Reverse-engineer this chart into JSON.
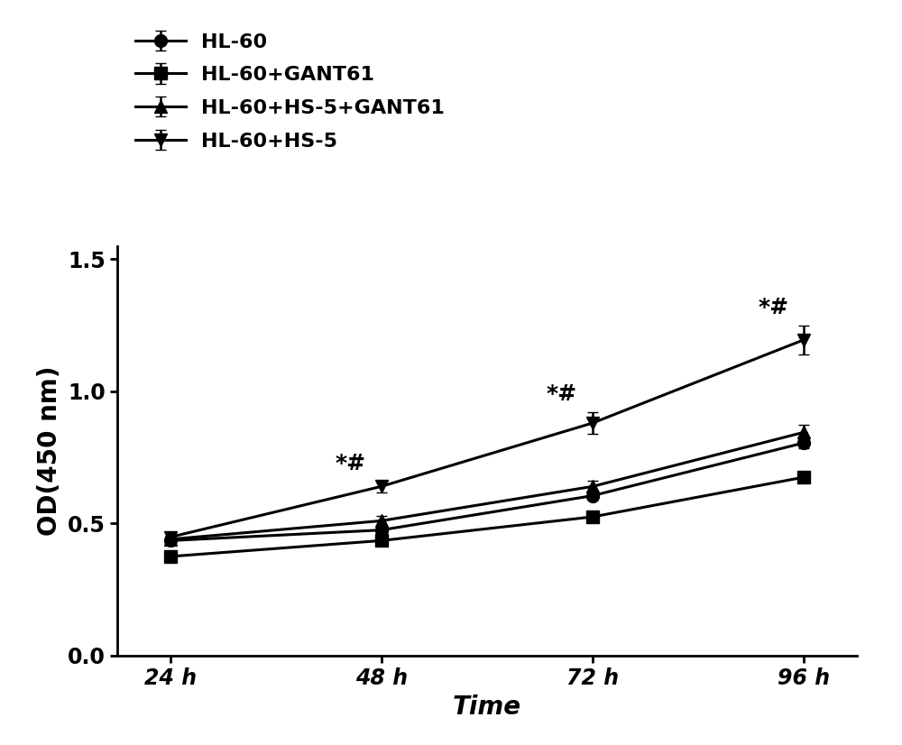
{
  "x": [
    24,
    48,
    72,
    96
  ],
  "xtick_labels": [
    "24 h",
    "48 h",
    "72 h",
    "96 h"
  ],
  "series": {
    "HL-60": {
      "y": [
        0.435,
        0.475,
        0.605,
        0.805
      ],
      "yerr": [
        0.015,
        0.015,
        0.015,
        0.022
      ],
      "marker": "o",
      "label": "HL-60"
    },
    "HL-60+GANT61": {
      "y": [
        0.375,
        0.435,
        0.525,
        0.675
      ],
      "yerr": [
        0.012,
        0.012,
        0.015,
        0.018
      ],
      "marker": "s",
      "label": "HL-60+GANT61"
    },
    "HL-60+HS-5+GANT61": {
      "y": [
        0.44,
        0.51,
        0.64,
        0.845
      ],
      "yerr": [
        0.015,
        0.018,
        0.022,
        0.028
      ],
      "marker": "^",
      "label": "HL-60+HS-5+GANT61"
    },
    "HL-60+HS-5": {
      "y": [
        0.448,
        0.64,
        0.88,
        1.195
      ],
      "yerr": [
        0.015,
        0.022,
        0.042,
        0.055
      ],
      "marker": "v",
      "label": "HL-60+HS-5"
    }
  },
  "series_order": [
    "HL-60",
    "HL-60+GANT61",
    "HL-60+HS-5+GANT61",
    "HL-60+HS-5"
  ],
  "line_color": "#000000",
  "ylabel": "OD(450 nm)",
  "xlabel": "Time",
  "ylim": [
    0.0,
    1.55
  ],
  "yticks": [
    0.0,
    0.5,
    1.0,
    1.5
  ],
  "label_fontsize": 20,
  "tick_fontsize": 17,
  "legend_fontsize": 16,
  "linewidth": 2.2,
  "markersize": 10,
  "capsize": 4,
  "annot_fontsize": 18
}
